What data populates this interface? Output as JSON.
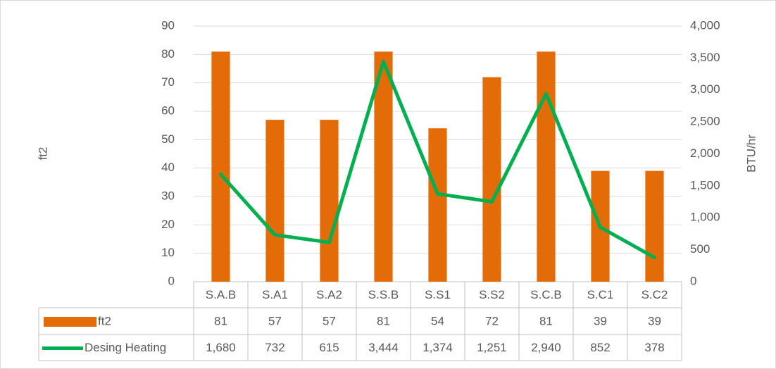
{
  "chart_data": {
    "type": "bar_line",
    "y_label": "ft2",
    "y2_label": "BTU/hr",
    "categories": [
      "S.A.B",
      "S.A1",
      "S.A2",
      "S.S.B",
      "S.S1",
      "S.S2",
      "S.C.B",
      "S.C1",
      "S.C2"
    ],
    "series": [
      {
        "name": "ft2",
        "type": "bar",
        "color": "#e36c09",
        "values": [
          81,
          57,
          57,
          81,
          54,
          72,
          81,
          39,
          39
        ]
      },
      {
        "name": "Desing Heating",
        "type": "line",
        "axis": "y2",
        "color": "#00b050",
        "values": [
          1680,
          732,
          615,
          3444,
          1374,
          1251,
          2940,
          852,
          378
        ],
        "value_labels": [
          "1,680",
          "732",
          "615",
          "3,444",
          "1,374",
          "1,251",
          "2,940",
          "852",
          "378"
        ]
      }
    ],
    "ylim": [
      0,
      90
    ],
    "yticks": [
      0,
      10,
      20,
      30,
      40,
      50,
      60,
      70,
      80,
      90
    ],
    "y2lim": [
      0,
      4000
    ],
    "y2ticks": [
      0,
      500,
      {
        "value": 1000,
        "label": "1,000"
      },
      {
        "value": 1500,
        "label": "1,500"
      },
      {
        "value": 2000,
        "label": "2,000"
      },
      {
        "value": 2500,
        "label": "2,500"
      },
      {
        "value": 3000,
        "label": "3,000"
      },
      {
        "value": 3500,
        "label": "3,500"
      },
      {
        "value": 4000,
        "label": "4,000"
      }
    ],
    "grid": true,
    "data_table": true
  }
}
